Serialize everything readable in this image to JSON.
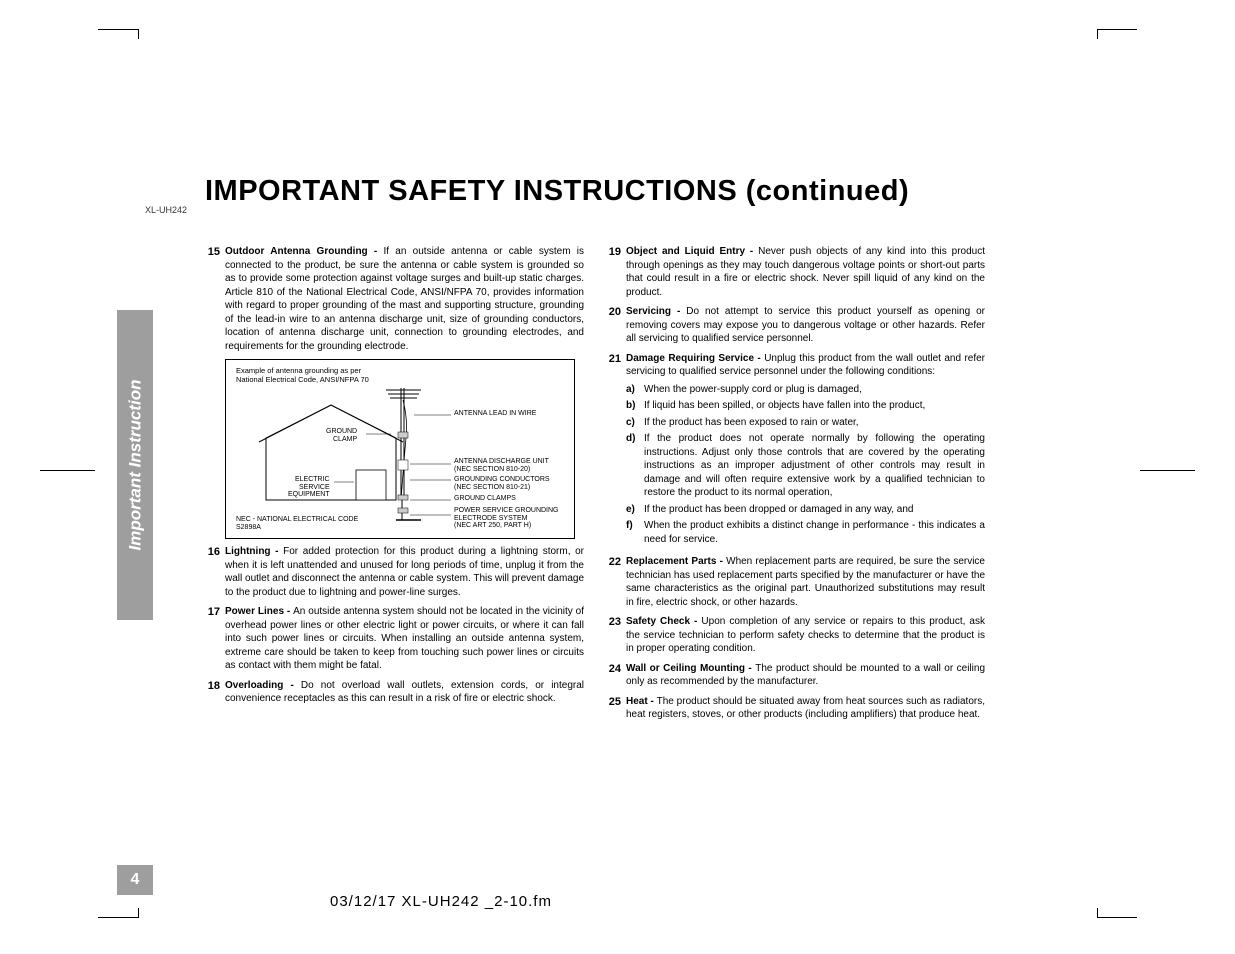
{
  "model": "XL-UH242",
  "title": "IMPORTANT SAFETY INSTRUCTIONS (continued)",
  "sidebar": "Important Instruction",
  "page_number": "4",
  "footer": "03/12/17    XL-UH242 _2-10.fm",
  "diagram": {
    "caption_l1": "Example of antenna grounding as per",
    "caption_l2": "National Electrical Code, ANSI/NFPA 70",
    "lbl_antenna_lead": "ANTENNA LEAD IN WIRE",
    "lbl_ground_clamp": "GROUND\nCLAMP",
    "lbl_discharge": "ANTENNA DISCHARGE UNIT\n(NEC SECTION 810-20)",
    "lbl_electric": "ELECTRIC\nSERVICE\nEQUIPMENT",
    "lbl_conductors": "GROUNDING CONDUCTORS\n(NEC SECTION 810-21)",
    "lbl_ground_clamps2": "GROUND CLAMPS",
    "lbl_power_service": "POWER SERVICE GROUNDING\nELECTRODE SYSTEM\n(NEC ART 250, PART H)",
    "lbl_nec": "NEC - NATIONAL ELECTRICAL CODE\nS2898A"
  },
  "left_items": [
    {
      "num": "15",
      "title": "Outdoor Antenna Grounding - ",
      "text": "If an outside antenna or cable system is connected to the product, be sure the antenna or cable system is grounded so as to provide some protection against voltage surges and built-up static charges. Article 810 of the National Electrical Code, ANSI/NFPA 70, provides information with regard to proper grounding of the mast and supporting structure, grounding of the lead-in wire to an antenna discharge unit, size of grounding conductors, location of antenna discharge unit, connection to grounding electrodes, and requirements for the grounding electrode.",
      "has_diagram": true
    },
    {
      "num": "16",
      "title": "Lightning - ",
      "text": "For added protection for this product during a lightning storm, or when it is left unattended and unused for long periods of time, unplug it from the wall outlet and disconnect the antenna or cable system. This will prevent damage to the product due to lightning and power-line surges."
    },
    {
      "num": "17",
      "title": "Power Lines - ",
      "text": "An outside antenna system should not be located in the vicinity of overhead power lines or other electric light or power circuits, or where it can fall into such power lines or circuits. When installing an outside antenna system, extreme care should be taken to keep from touching such power lines or circuits as contact with them might be fatal."
    },
    {
      "num": "18",
      "title": "Overloading - ",
      "text": "Do not overload wall outlets, extension cords, or integral convenience receptacles as this can result in a risk of fire or electric shock."
    }
  ],
  "right_items": [
    {
      "num": "19",
      "title": "Object and Liquid Entry - ",
      "text": "Never push objects of any kind into this product through openings as they may touch dangerous voltage points or short-out parts that could result in a fire or electric shock. Never spill liquid of any kind on the product."
    },
    {
      "num": "20",
      "title": "Servicing - ",
      "text": "Do not attempt to service this product yourself as opening or removing covers may expose you to dangerous voltage or other hazards. Refer all servicing to qualified service personnel."
    },
    {
      "num": "21",
      "title": "Damage Requiring Service - ",
      "text": "Unplug this product from the wall outlet and refer servicing to qualified service personnel under the following conditions:",
      "subs": [
        {
          "letter": "a)",
          "text": "When the power-supply cord or plug is damaged,"
        },
        {
          "letter": "b)",
          "text": "If liquid has been spilled, or objects have fallen into the product,"
        },
        {
          "letter": "c)",
          "text": "If the product has been exposed to rain or water,"
        },
        {
          "letter": "d)",
          "text": "If the product does not operate normally by following the operating instructions. Adjust only those controls that are covered by the operating instructions as an improper adjustment of other controls may result in damage and will often require extensive work by a qualified technician to restore the product to its normal operation,"
        },
        {
          "letter": "e)",
          "text": "If the product has been dropped or damaged in any way, and"
        },
        {
          "letter": "f)",
          "text": "When the product exhibits a distinct change in performance - this indicates a need for service."
        }
      ]
    },
    {
      "num": "22",
      "title": "Replacement Parts - ",
      "text": "When replacement parts are required, be sure the service technician has used replacement parts specified by the manufacturer or have the same characteristics as the original part. Unauthorized substitutions may result in fire, electric shock, or other hazards."
    },
    {
      "num": "23",
      "title": "Safety Check - ",
      "text": "Upon completion of any service or repairs to this product, ask the service technician to perform safety checks to determine that the product is in proper operating condition."
    },
    {
      "num": "24",
      "title": "Wall or Ceiling Mounting - ",
      "text": "The product should be mounted to a wall or ceiling only as recommended by the manufacturer."
    },
    {
      "num": "25",
      "title": "Heat - ",
      "text": "The product should be situated away from heat sources such as radiators, heat registers, stoves, or other products (including amplifiers) that produce heat."
    }
  ]
}
